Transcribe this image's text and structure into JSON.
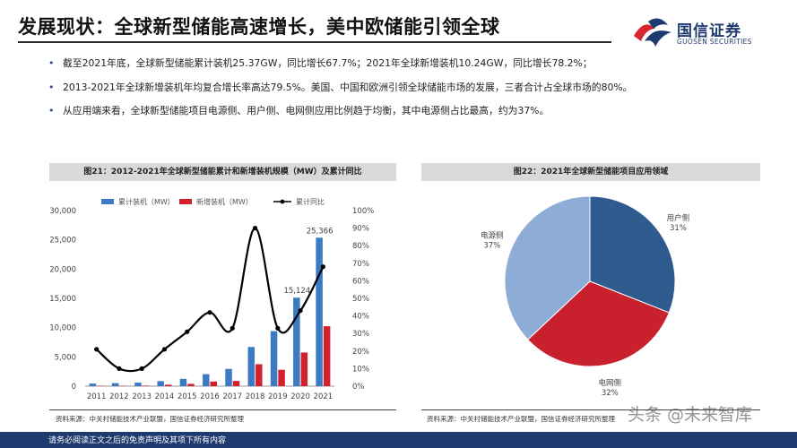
{
  "page": {
    "title": "发展现状：全球新型储能高速增长，美中欧储能引领全球",
    "logo_cn": "国信证券",
    "logo_en": "GUOSEN SECURITIES",
    "bullets": [
      "截至2021年底，全球新型储能累计装机25.37GW，同比增长67.7%；2021年全球新增装机10.24GW，同比增长78.2%；",
      "2013-2021年全球新增装机年均复合增长率高达79.5%。美国、中国和欧洲引领全球储能市场的发展，三者合计占全球市场的80%。",
      "从应用端来看，全球新型储能项目电源侧、用户侧、电网侧应用比例趋于均衡，其中电源侧占比最高，约为37%。"
    ],
    "footer": "请务必阅读正文之后的免责声明及其项下所有内容",
    "watermark": "头条 @未来智库",
    "colors": {
      "brand": "#1f3a6e",
      "logo_red": "#d7262e"
    }
  },
  "chart_data": [
    {
      "type": "bar",
      "title": "图21：2012-2021年全球新型储能累计和新增装机规模（MW）及累计同比",
      "source": "资料来源：中关村储能技术产业联盟，国信证券经济研究所整理",
      "categories": [
        "2011",
        "2012",
        "2013",
        "2014",
        "2015",
        "2016",
        "2017",
        "2018",
        "2019",
        "2020",
        "2021"
      ],
      "series": [
        {
          "name": "累计装机（MW）",
          "kind": "bar",
          "axis": "left",
          "color": "#3c7bc4",
          "values": [
            450,
            520,
            610,
            860,
            1250,
            2050,
            2950,
            6700,
            9400,
            15124,
            25366
          ]
        },
        {
          "name": "新增装机（MW）",
          "kind": "bar",
          "axis": "left",
          "color": "#d3202d",
          "values": [
            60,
            70,
            90,
            250,
            390,
            800,
            900,
            3750,
            2800,
            5750,
            10240
          ]
        },
        {
          "name": "累计同比",
          "kind": "line",
          "axis": "right",
          "color": "#000000",
          "values": [
            0.21,
            0.1,
            0.1,
            0.21,
            0.31,
            0.42,
            0.33,
            0.9,
            0.33,
            0.43,
            0.68
          ]
        }
      ],
      "data_labels": [
        "15,124",
        "25,366"
      ],
      "left_axis": {
        "ticks": [
          "0",
          "5,000",
          "10,000",
          "15,000",
          "20,000",
          "25,000",
          "30,000"
        ],
        "ylim": [
          0,
          30000
        ]
      },
      "right_axis": {
        "ticks": [
          "0%",
          "10%",
          "20%",
          "30%",
          "40%",
          "50%",
          "60%",
          "70%",
          "80%",
          "90%",
          "100%"
        ],
        "ylim": [
          0,
          1
        ]
      },
      "legend": "top",
      "grid": false
    },
    {
      "type": "pie",
      "title": "图22：2021年全球新型储能项目应用领域",
      "source": "资料来源：中关村储能技术产业联盟，国信证券经济研究所整理",
      "slices": [
        {
          "label": "用户侧",
          "pct": "31%",
          "value": 31,
          "color": "#2f5b8f"
        },
        {
          "label": "电网侧",
          "pct": "32%",
          "value": 32,
          "color": "#c9202d"
        },
        {
          "label": "电源侧",
          "pct": "37%",
          "value": 37,
          "color": "#8eadd6"
        }
      ]
    }
  ]
}
